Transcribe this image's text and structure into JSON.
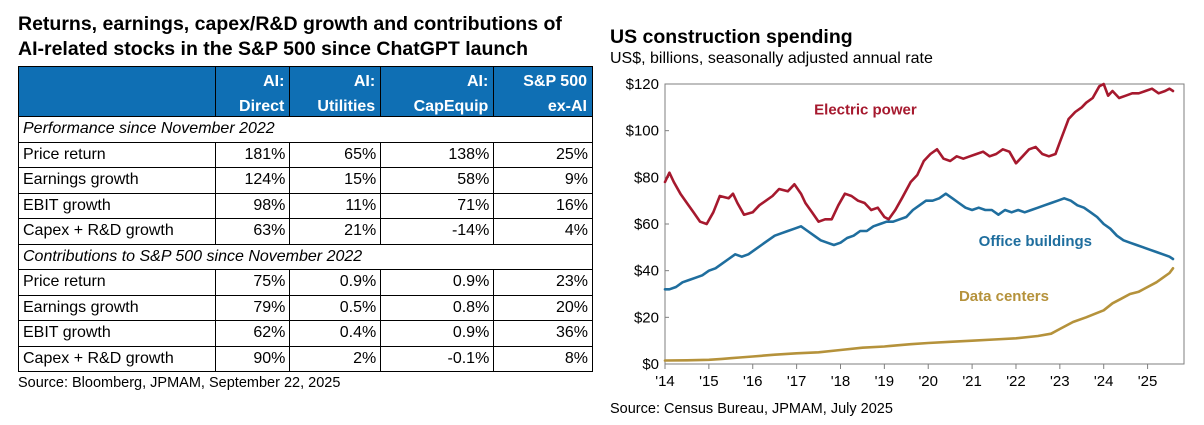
{
  "left_panel": {
    "title_line1": "Returns, earnings, capex/R&D growth and contributions of",
    "title_line2": "AI-related stocks in the S&P 500 since ChatGPT launch",
    "columns": [
      {
        "line1": "AI:",
        "line2": "Direct"
      },
      {
        "line1": "AI:",
        "line2": "Utilities"
      },
      {
        "line1": "AI:",
        "line2": "CapEquip"
      },
      {
        "line1": "S&P 500",
        "line2": "ex-AI"
      }
    ],
    "section1": {
      "title": "Performance since November 2022",
      "rows": [
        {
          "label": "Price return",
          "values": [
            "181%",
            "65%",
            "138%",
            "25%"
          ]
        },
        {
          "label": "Earnings growth",
          "values": [
            "124%",
            "15%",
            "58%",
            "9%"
          ]
        },
        {
          "label": "EBIT growth",
          "values": [
            "98%",
            "11%",
            "71%",
            "16%"
          ]
        },
        {
          "label": "Capex + R&D growth",
          "values": [
            "63%",
            "21%",
            "-14%",
            "4%"
          ]
        }
      ]
    },
    "section2": {
      "title": "Contributions to S&P 500 since November 2022",
      "rows": [
        {
          "label": "Price return",
          "values": [
            "75%",
            "0.9%",
            "0.9%",
            "23%"
          ]
        },
        {
          "label": "Earnings growth",
          "values": [
            "79%",
            "0.5%",
            "0.8%",
            "20%"
          ]
        },
        {
          "label": "EBIT growth",
          "values": [
            "62%",
            "0.4%",
            "0.9%",
            "36%"
          ]
        },
        {
          "label": "Capex + R&D growth",
          "values": [
            "90%",
            "2%",
            "-0.1%",
            "8%"
          ]
        }
      ]
    },
    "source": "Source: Bloomberg, JPMAM, September 22, 2025"
  },
  "right_panel": {
    "title": "US construction spending",
    "subtitle": "US$, billions, seasonally adjusted annual rate",
    "source": "Source: Census Bureau, JPMAM, July 2025"
  },
  "chart_data": {
    "type": "line",
    "title": "US construction spending",
    "ylabel": "US$, billions, seasonally adjusted annual rate",
    "xlabel": "",
    "ylim": [
      0,
      120
    ],
    "xlim": [
      2014.0,
      2025.83
    ],
    "yticks": [
      0,
      20,
      40,
      60,
      80,
      100,
      120
    ],
    "ytick_labels": [
      "$0",
      "$20",
      "$40",
      "$60",
      "$80",
      "$100",
      "$120"
    ],
    "xticks": [
      2014,
      2015,
      2016,
      2017,
      2018,
      2019,
      2020,
      2021,
      2022,
      2023,
      2024,
      2025
    ],
    "xtick_labels": [
      "'14",
      "'15",
      "'16",
      "'17",
      "'18",
      "'19",
      "'20",
      "'21",
      "'22",
      "'23",
      "'24",
      "'25"
    ],
    "grid": false,
    "legend": "inline labels",
    "series": [
      {
        "name": "Electric power",
        "color": "#a6192e",
        "x": [
          2014.0,
          2014.1,
          2014.2,
          2014.35,
          2014.5,
          2014.65,
          2014.8,
          2014.95,
          2015.1,
          2015.25,
          2015.45,
          2015.55,
          2015.65,
          2015.8,
          2016.0,
          2016.15,
          2016.3,
          2016.45,
          2016.6,
          2016.8,
          2016.95,
          2017.1,
          2017.2,
          2017.35,
          2017.5,
          2017.65,
          2017.8,
          2017.95,
          2018.1,
          2018.25,
          2018.4,
          2018.55,
          2018.7,
          2018.85,
          2019.0,
          2019.1,
          2019.25,
          2019.4,
          2019.6,
          2019.75,
          2019.9,
          2020.05,
          2020.2,
          2020.35,
          2020.5,
          2020.65,
          2020.8,
          2020.95,
          2021.1,
          2021.25,
          2021.4,
          2021.55,
          2021.7,
          2021.85,
          2022.0,
          2022.15,
          2022.3,
          2022.45,
          2022.6,
          2022.75,
          2022.9,
          2023.0,
          2023.1,
          2023.2,
          2023.35,
          2023.5,
          2023.6,
          2023.75,
          2023.9,
          2024.0,
          2024.1,
          2024.2,
          2024.35,
          2024.5,
          2024.65,
          2024.8,
          2024.95,
          2025.1,
          2025.25,
          2025.4,
          2025.5,
          2025.58
        ],
        "y": [
          78,
          82,
          78,
          73,
          69,
          65,
          61,
          60,
          65,
          72,
          71,
          73,
          69,
          64,
          65,
          68,
          70,
          72,
          75,
          74,
          77,
          73,
          69,
          65,
          61,
          62,
          62,
          68,
          73,
          72,
          70,
          69,
          66,
          67,
          63,
          62,
          66,
          71,
          78,
          81,
          87,
          90,
          92,
          88,
          87,
          89,
          88,
          89,
          90,
          91,
          89,
          90,
          92,
          91,
          86,
          89,
          92,
          93,
          90,
          89,
          90,
          95,
          100,
          105,
          108,
          110,
          112,
          114,
          119,
          120,
          115,
          117,
          114,
          115,
          116,
          116,
          117,
          118,
          116,
          117,
          118,
          117
        ]
      },
      {
        "name": "Office buildings",
        "color": "#1f6e9e",
        "x": [
          2014.0,
          2014.1,
          2014.25,
          2014.4,
          2014.55,
          2014.7,
          2014.85,
          2015.0,
          2015.15,
          2015.3,
          2015.45,
          2015.6,
          2015.75,
          2015.9,
          2016.05,
          2016.2,
          2016.35,
          2016.5,
          2016.65,
          2016.8,
          2016.95,
          2017.1,
          2017.25,
          2017.4,
          2017.55,
          2017.7,
          2017.85,
          2018.0,
          2018.15,
          2018.3,
          2018.45,
          2018.6,
          2018.75,
          2018.9,
          2019.05,
          2019.2,
          2019.35,
          2019.5,
          2019.65,
          2019.8,
          2019.95,
          2020.1,
          2020.25,
          2020.4,
          2020.55,
          2020.7,
          2020.85,
          2021.0,
          2021.15,
          2021.3,
          2021.45,
          2021.6,
          2021.75,
          2021.9,
          2022.05,
          2022.2,
          2022.35,
          2022.5,
          2022.65,
          2022.8,
          2022.95,
          2023.1,
          2023.25,
          2023.4,
          2023.55,
          2023.7,
          2023.85,
          2024.0,
          2024.15,
          2024.3,
          2024.45,
          2024.6,
          2024.75,
          2024.9,
          2025.05,
          2025.2,
          2025.35,
          2025.5,
          2025.58
        ],
        "y": [
          32,
          32,
          33,
          35,
          36,
          37,
          38,
          40,
          41,
          43,
          45,
          47,
          46,
          47,
          49,
          51,
          53,
          55,
          56,
          57,
          58,
          59,
          57,
          55,
          53,
          52,
          51,
          52,
          54,
          55,
          57,
          57,
          59,
          60,
          61,
          61,
          62,
          63,
          66,
          68,
          70,
          70,
          71,
          73,
          71,
          69,
          67,
          66,
          67,
          66,
          66,
          64,
          66,
          65,
          66,
          65,
          66,
          67,
          68,
          69,
          70,
          71,
          70,
          68,
          67,
          65,
          63,
          60,
          58,
          55,
          53,
          52,
          51,
          50,
          49,
          48,
          47,
          46,
          45
        ]
      },
      {
        "name": "Data centers",
        "color": "#b5923b",
        "x": [
          2014.0,
          2014.5,
          2015.0,
          2015.3,
          2015.5,
          2015.7,
          2016.0,
          2016.5,
          2017.0,
          2017.5,
          2018.0,
          2018.5,
          2019.0,
          2019.3,
          2019.6,
          2020.0,
          2020.5,
          2021.0,
          2021.5,
          2022.0,
          2022.5,
          2022.8,
          2023.0,
          2023.3,
          2023.6,
          2023.8,
          2024.0,
          2024.2,
          2024.4,
          2024.6,
          2024.8,
          2025.0,
          2025.2,
          2025.35,
          2025.5,
          2025.58
        ],
        "y": [
          1.5,
          1.6,
          1.8,
          2.2,
          2.5,
          2.8,
          3.2,
          4,
          4.6,
          5,
          6,
          7,
          7.5,
          8,
          8.5,
          9,
          9.5,
          10,
          10.5,
          11,
          12,
          13,
          15,
          18,
          20,
          21.5,
          23,
          26,
          28,
          30,
          31,
          33,
          35,
          37,
          39,
          41
        ]
      }
    ]
  }
}
